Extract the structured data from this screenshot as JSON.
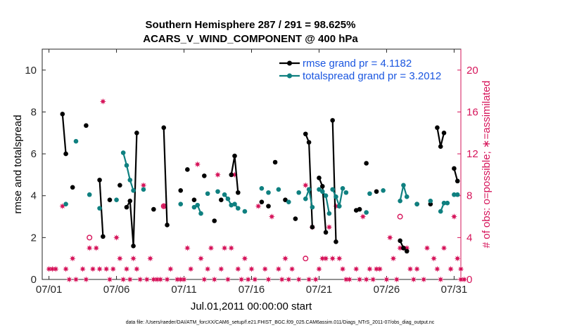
{
  "chart_data": {
    "type": "line",
    "title_line1": "Southern Hemisphere 287 / 291 = 98.625%",
    "title_line2": "ACARS_V_WIND_COMPONENT @ 400 hPa",
    "xlabel": "Jul.01,2011 00:00:00 start",
    "ylabel_left": "rmse and totalspread",
    "ylabel_right": "# of obs: o=possible; ∗=assimilated",
    "footer": "data file: /Users/raeder/DAI/ATM_forcXX/CAM6_setup/f.e21.FHIST_BGC.f09_025.CAM6assim.011/Diags_NTrS_2011-07/obs_diag_output.nc",
    "xlim": [
      0.5,
      31.5
    ],
    "ylim_left": [
      0,
      11
    ],
    "ylim_right": [
      0,
      22
    ],
    "x_ticks": [
      1,
      6,
      11,
      16,
      21,
      26,
      31
    ],
    "x_tick_labels": [
      "07/01",
      "07/06",
      "07/11",
      "07/16",
      "07/21",
      "07/26",
      "07/31"
    ],
    "y_ticks_left": [
      0,
      2,
      4,
      6,
      8,
      10
    ],
    "y_ticks_right": [
      0,
      4,
      8,
      12,
      16,
      20
    ],
    "colors": {
      "rmse": "#000000",
      "spread": "#0f8080",
      "obs": "#d6145a",
      "axis_right": "#d6145a",
      "legend_text": "#1a56e0"
    },
    "legend": {
      "position": "top-right",
      "rmse_label": "rmse grand pr = 4.1182",
      "spread_label": "totalspread grand pr = 3.2012"
    },
    "series": [
      {
        "name": "rmse",
        "segments": [
          [
            [
              2.0,
              7.9
            ],
            [
              2.25,
              6.0
            ]
          ],
          [
            [
              4.75,
              4.75
            ],
            [
              5.0,
              2.05
            ]
          ],
          [
            [
              6.75,
              3.45
            ],
            [
              7.0,
              3.75
            ],
            [
              7.25,
              1.6
            ],
            [
              7.5,
              7.0
            ]
          ],
          [
            [
              9.5,
              7.25
            ],
            [
              9.75,
              2.6
            ]
          ],
          [
            [
              14.5,
              5.0
            ],
            [
              14.75,
              5.9
            ],
            [
              15.0,
              4.15
            ]
          ],
          [
            [
              20.0,
              6.95
            ],
            [
              20.25,
              6.55
            ],
            [
              20.5,
              2.5
            ]
          ],
          [
            [
              21.0,
              4.85
            ],
            [
              21.25,
              4.45
            ],
            [
              21.5,
              2.25
            ]
          ],
          [
            [
              22.0,
              7.6
            ],
            [
              22.25,
              1.8
            ]
          ],
          [
            [
              27.0,
              1.85
            ],
            [
              27.25,
              1.5
            ],
            [
              27.5,
              1.35
            ]
          ],
          [
            [
              29.75,
              7.25
            ],
            [
              30.0,
              6.35
            ],
            [
              30.25,
              7.0
            ]
          ],
          [
            [
              31.0,
              5.3
            ],
            [
              31.25,
              4.7
            ]
          ]
        ],
        "singles": [
          [
            2.75,
            4.4
          ],
          [
            3.75,
            7.35
          ],
          [
            5.5,
            3.8
          ],
          [
            6.25,
            4.5
          ],
          [
            8.75,
            3.35
          ],
          [
            10.75,
            4.25
          ],
          [
            11.25,
            5.25
          ],
          [
            11.75,
            3.8
          ],
          [
            12.5,
            4.95
          ],
          [
            13.25,
            2.8
          ],
          [
            13.75,
            3.8
          ],
          [
            16.75,
            3.7
          ],
          [
            17.25,
            3.5
          ],
          [
            17.75,
            5.6
          ],
          [
            18.5,
            3.8
          ],
          [
            19.25,
            2.9
          ],
          [
            23.75,
            3.3
          ],
          [
            24.0,
            3.35
          ],
          [
            24.5,
            5.55
          ],
          [
            25.25,
            4.2
          ],
          [
            28.25,
            3.6
          ],
          [
            29.25,
            3.6
          ]
        ]
      },
      {
        "name": "totalspread",
        "segments": [
          [
            [
              6.5,
              6.05
            ],
            [
              6.75,
              5.45
            ],
            [
              7.0,
              4.75
            ],
            [
              7.25,
              4.25
            ]
          ],
          [
            [
              12.0,
              3.55
            ],
            [
              12.25,
              3.15
            ]
          ],
          [
            [
              14.0,
              4.05
            ],
            [
              14.25,
              3.85
            ],
            [
              14.5,
              3.55
            ],
            [
              14.75,
              3.6
            ],
            [
              15.0,
              3.4
            ]
          ],
          [
            [
              20.0,
              3.85
            ],
            [
              20.25,
              4.3
            ],
            [
              20.5,
              3.45
            ]
          ],
          [
            [
              21.0,
              4.3
            ],
            [
              21.25,
              4.2
            ],
            [
              21.5,
              4.0
            ],
            [
              21.75,
              3.15
            ]
          ],
          [
            [
              22.0,
              4.3
            ],
            [
              22.25,
              3.95
            ],
            [
              22.5,
              3.5
            ],
            [
              22.75,
              4.35
            ]
          ],
          [
            [
              27.0,
              3.75
            ],
            [
              27.25,
              4.5
            ],
            [
              27.5,
              3.95
            ]
          ],
          [
            [
              30.0,
              3.25
            ],
            [
              30.25,
              3.65
            ],
            [
              30.5,
              3.65
            ]
          ],
          [
            [
              31.0,
              4.05
            ],
            [
              31.25,
              4.05
            ]
          ]
        ],
        "singles": [
          [
            2.25,
            3.6
          ],
          [
            3.0,
            6.6
          ],
          [
            4.0,
            4.05
          ],
          [
            4.75,
            3.4
          ],
          [
            6.0,
            3.8
          ],
          [
            8.0,
            4.3
          ],
          [
            10.75,
            3.6
          ],
          [
            11.75,
            3.45
          ],
          [
            12.75,
            4.1
          ],
          [
            13.5,
            4.2
          ],
          [
            15.5,
            3.25
          ],
          [
            16.75,
            4.35
          ],
          [
            17.25,
            4.15
          ],
          [
            18.0,
            4.3
          ],
          [
            18.75,
            3.7
          ],
          [
            19.5,
            4.15
          ],
          [
            23.0,
            4.15
          ],
          [
            24.5,
            3.2
          ],
          [
            24.75,
            4.1
          ],
          [
            25.75,
            4.25
          ],
          [
            28.25,
            3.6
          ],
          [
            29.25,
            3.75
          ]
        ]
      }
    ],
    "obs_possible_only": [
      [
        4.0,
        4
      ],
      [
        9.5,
        7
      ],
      [
        20.0,
        2
      ],
      [
        27.0,
        6
      ]
    ],
    "obs_assimilated": [
      [
        1.0,
        1
      ],
      [
        1.25,
        1
      ],
      [
        1.5,
        1
      ],
      [
        2.0,
        7
      ],
      [
        2.25,
        1
      ],
      [
        2.5,
        0
      ],
      [
        2.75,
        2
      ],
      [
        3.0,
        0
      ],
      [
        3.5,
        1
      ],
      [
        3.75,
        0
      ],
      [
        4.0,
        3
      ],
      [
        4.25,
        1
      ],
      [
        4.5,
        3
      ],
      [
        4.75,
        1
      ],
      [
        5.0,
        17
      ],
      [
        5.25,
        1
      ],
      [
        5.5,
        0
      ],
      [
        5.75,
        1
      ],
      [
        6.0,
        4
      ],
      [
        6.25,
        2
      ],
      [
        6.5,
        0
      ],
      [
        6.75,
        1
      ],
      [
        7.0,
        0
      ],
      [
        7.25,
        2
      ],
      [
        7.5,
        1
      ],
      [
        7.75,
        0
      ],
      [
        8.0,
        9
      ],
      [
        8.25,
        0
      ],
      [
        8.5,
        2
      ],
      [
        8.75,
        0
      ],
      [
        9.0,
        0
      ],
      [
        9.25,
        0
      ],
      [
        9.5,
        7
      ],
      [
        9.75,
        0
      ],
      [
        10.0,
        1
      ],
      [
        10.5,
        0
      ],
      [
        10.75,
        0
      ],
      [
        11.0,
        0
      ],
      [
        11.25,
        3
      ],
      [
        11.5,
        1
      ],
      [
        12.0,
        11
      ],
      [
        12.25,
        2
      ],
      [
        12.5,
        0
      ],
      [
        12.75,
        1
      ],
      [
        13.0,
        3
      ],
      [
        13.25,
        0
      ],
      [
        13.5,
        10
      ],
      [
        13.75,
        1
      ],
      [
        14.0,
        3
      ],
      [
        14.25,
        0
      ],
      [
        14.5,
        3
      ],
      [
        14.75,
        10
      ],
      [
        15.0,
        1
      ],
      [
        15.25,
        0
      ],
      [
        15.5,
        2
      ],
      [
        15.75,
        0
      ],
      [
        16.0,
        1
      ],
      [
        16.25,
        0
      ],
      [
        16.5,
        7
      ],
      [
        17.0,
        1
      ],
      [
        17.25,
        0
      ],
      [
        17.5,
        6
      ],
      [
        18.0,
        1
      ],
      [
        18.25,
        0
      ],
      [
        18.5,
        2
      ],
      [
        18.75,
        0
      ],
      [
        19.0,
        1
      ],
      [
        19.5,
        0
      ],
      [
        20.0,
        9
      ],
      [
        20.25,
        0
      ],
      [
        20.5,
        5
      ],
      [
        20.75,
        0
      ],
      [
        21.0,
        1
      ],
      [
        21.25,
        2
      ],
      [
        21.5,
        2
      ],
      [
        21.75,
        5
      ],
      [
        22.0,
        2
      ],
      [
        22.25,
        7
      ],
      [
        22.5,
        2
      ],
      [
        22.75,
        1
      ],
      [
        23.0,
        0
      ],
      [
        23.25,
        0
      ],
      [
        23.75,
        1
      ],
      [
        24.0,
        0
      ],
      [
        24.25,
        6
      ],
      [
        24.5,
        0
      ],
      [
        24.75,
        1
      ],
      [
        25.0,
        0
      ],
      [
        25.25,
        1
      ],
      [
        25.5,
        1
      ],
      [
        26.0,
        0
      ],
      [
        26.25,
        4
      ],
      [
        26.5,
        2
      ],
      [
        26.75,
        0
      ],
      [
        27.0,
        3
      ],
      [
        27.25,
        3
      ],
      [
        27.5,
        3
      ],
      [
        27.75,
        1
      ],
      [
        28.0,
        0
      ],
      [
        28.25,
        1
      ],
      [
        28.75,
        0
      ],
      [
        29.0,
        3
      ],
      [
        29.5,
        2
      ],
      [
        29.75,
        1
      ],
      [
        30.0,
        0
      ],
      [
        30.25,
        3
      ],
      [
        30.75,
        1
      ],
      [
        31.0,
        6
      ],
      [
        31.25,
        2
      ],
      [
        31.5,
        1
      ],
      [
        31.5,
        0
      ],
      [
        31.75,
        0
      ]
    ]
  }
}
